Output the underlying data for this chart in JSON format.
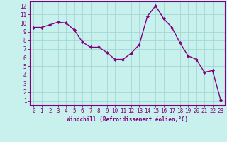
{
  "x": [
    0,
    1,
    2,
    3,
    4,
    5,
    6,
    7,
    8,
    9,
    10,
    11,
    12,
    13,
    14,
    15,
    16,
    17,
    18,
    19,
    20,
    21,
    22,
    23
  ],
  "y": [
    9.5,
    9.5,
    9.8,
    10.1,
    10.0,
    9.2,
    7.8,
    7.2,
    7.2,
    6.6,
    5.8,
    5.8,
    6.5,
    7.5,
    10.8,
    12.0,
    10.5,
    9.5,
    7.7,
    6.2,
    5.8,
    4.3,
    4.5,
    1.1
  ],
  "line_color": "#800080",
  "marker": "D",
  "marker_size": 2.0,
  "bg_color": "#c8f0ec",
  "grid_color": "#a0d8d4",
  "xlabel": "Windchill (Refroidissement éolien,°C)",
  "ylabel_ticks": [
    1,
    2,
    3,
    4,
    5,
    6,
    7,
    8,
    9,
    10,
    11,
    12
  ],
  "xlim": [
    -0.5,
    23.5
  ],
  "ylim": [
    0.5,
    12.5
  ],
  "xlabel_color": "#800080",
  "tick_color": "#800080",
  "spine_color": "#800080",
  "tick_fontsize": 5.5,
  "xlabel_fontsize": 5.5,
  "linewidth": 1.0
}
